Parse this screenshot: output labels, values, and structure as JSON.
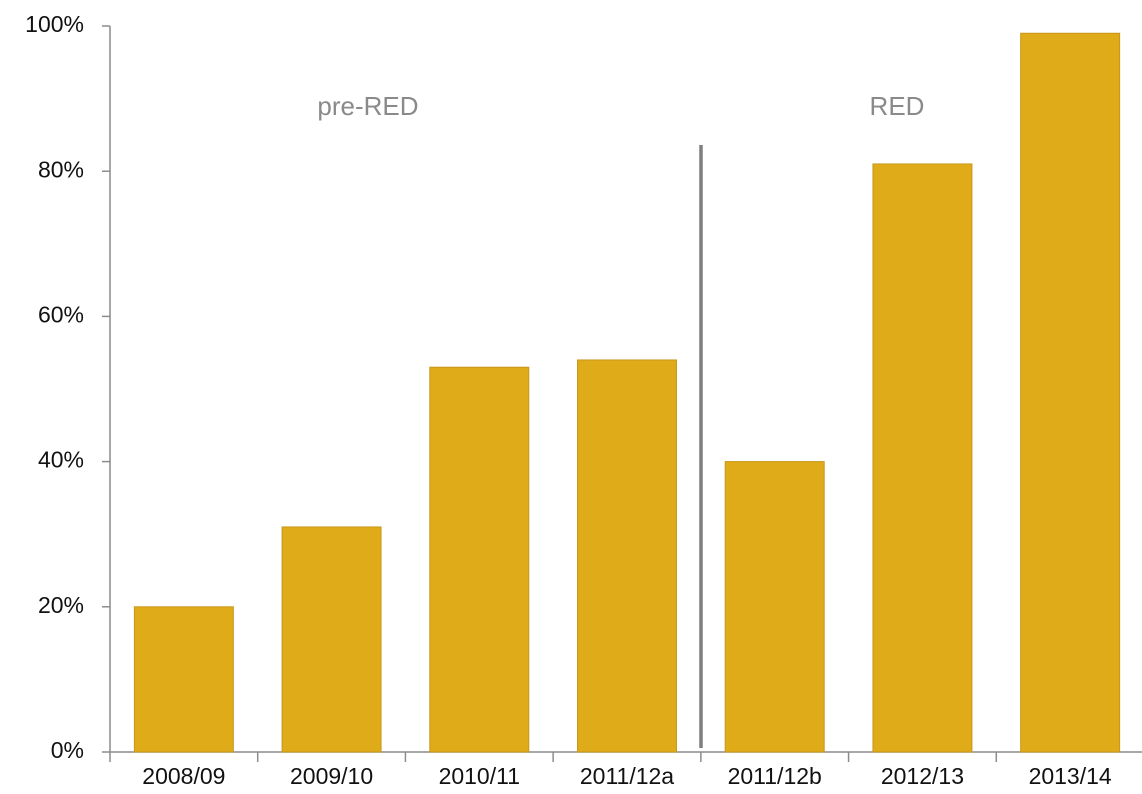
{
  "chart_data": {
    "type": "bar",
    "categories": [
      "2008/09",
      "2009/10",
      "2010/11",
      "2011/12a",
      "2011/12b",
      "2012/13",
      "2013/14"
    ],
    "values": [
      20,
      31,
      53,
      54,
      40,
      81,
      99
    ],
    "color": "#dfab19",
    "ylim": [
      0,
      100
    ],
    "yticks": [
      {
        "value": 0,
        "label": "0%"
      },
      {
        "value": 20,
        "label": "20%"
      },
      {
        "value": 40,
        "label": "40%"
      },
      {
        "value": 60,
        "label": "60%"
      },
      {
        "value": 80,
        "label": "80%"
      },
      {
        "value": 100,
        "label": "100%"
      }
    ],
    "annotations": [
      "pre-RED",
      "RED"
    ],
    "grid": false
  }
}
